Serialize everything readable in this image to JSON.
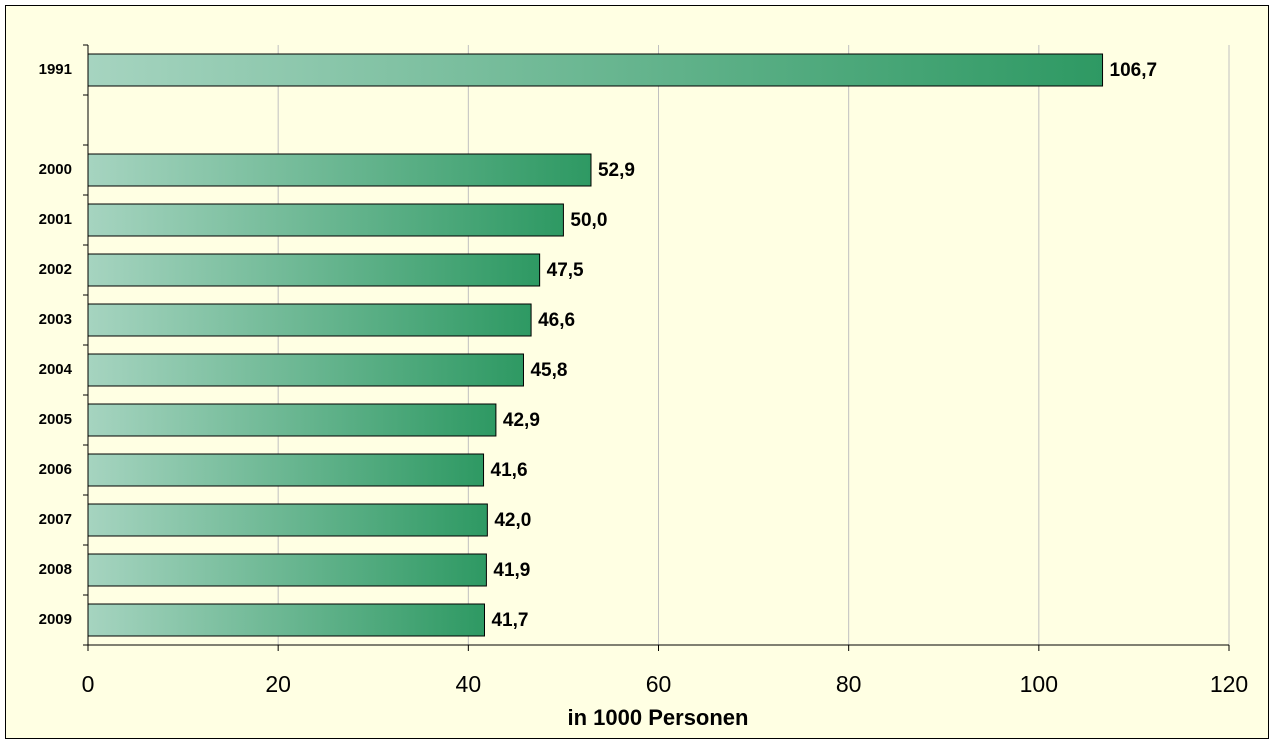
{
  "chart_data": {
    "type": "barh",
    "categories": [
      "1991",
      null,
      "2000",
      "2001",
      "2002",
      "2003",
      "2004",
      "2005",
      "2006",
      "2007",
      "2008",
      "2009"
    ],
    "values": [
      106.7,
      null,
      52.9,
      50.0,
      47.5,
      46.6,
      45.8,
      42.9,
      41.6,
      42.0,
      41.9,
      41.7
    ],
    "value_labels": [
      "106,7",
      null,
      "52,9",
      "50,0",
      "47,5",
      "46,6",
      "45,8",
      "42,9",
      "41,6",
      "42,0",
      "41,9",
      "41,7"
    ],
    "gradient": [
      "#a6d4c0",
      "#2e9963"
    ],
    "xlabel": "in 1000 Personen",
    "xlim": [
      0,
      120
    ],
    "xticks": [
      0,
      20,
      40,
      60,
      80,
      100,
      120
    ],
    "grid": true
  }
}
